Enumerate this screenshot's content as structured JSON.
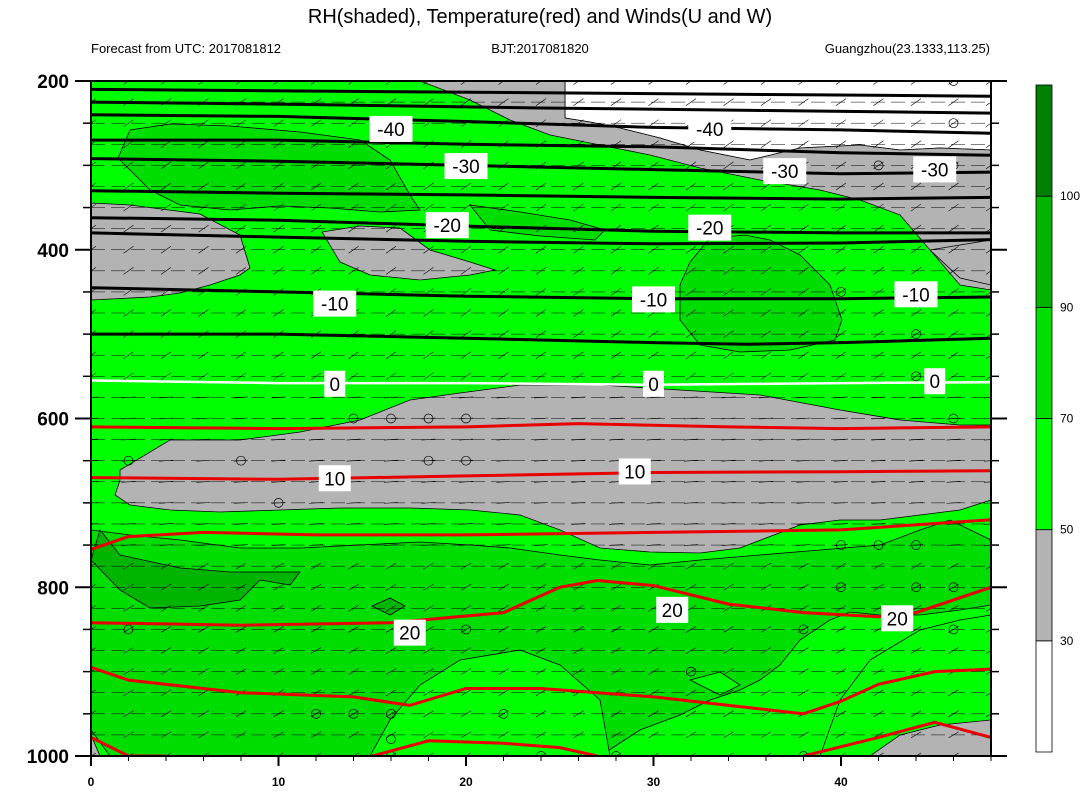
{
  "chart_data": {
    "type": "contour",
    "title": "RH(shaded), Temperature(red) and Winds(U and W)",
    "subtitle_left": "Forecast from UTC: 2017081812",
    "subtitle_center": "BJT:2017081820",
    "subtitle_right": "Guangzhou(23.1333,113.25)",
    "x_ticks": [
      "0",
      "10",
      "20",
      "30",
      "40"
    ],
    "x_range": [
      0,
      48
    ],
    "y_ticks": [
      "200",
      "400",
      "600",
      "800",
      "1000"
    ],
    "y_range": [
      200,
      1000
    ],
    "colorbar": {
      "labels": [
        "30",
        "50",
        "70",
        "90",
        "100"
      ],
      "colors": [
        "#ffffff",
        "#b3b3b3",
        "#00ff00",
        "#00dd00",
        "#00b400",
        "#007f00"
      ],
      "bounds": [
        30,
        50,
        70,
        90,
        100
      ]
    },
    "temperature_contours": [
      {
        "value": "-40",
        "level": 250
      },
      {
        "value": "-30",
        "level": 305
      },
      {
        "value": "-20",
        "level": 372
      },
      {
        "value": "-10",
        "level": 460
      },
      {
        "value": "0",
        "level": 555
      },
      {
        "value": "10",
        "level": 670
      },
      {
        "value": "20",
        "level": 850
      }
    ],
    "contour_labels": [
      {
        "text": "-40",
        "x": 16,
        "p": 258
      },
      {
        "text": "-40",
        "x": 33,
        "p": 258
      },
      {
        "text": "-30",
        "x": 20,
        "p": 302
      },
      {
        "text": "-30",
        "x": 37,
        "p": 308
      },
      {
        "text": "-30",
        "x": 45,
        "p": 306
      },
      {
        "text": "-20",
        "x": 19,
        "p": 372
      },
      {
        "text": "-20",
        "x": 33,
        "p": 375
      },
      {
        "text": "-10",
        "x": 13,
        "p": 465
      },
      {
        "text": "-10",
        "x": 30,
        "p": 460
      },
      {
        "text": "-10",
        "x": 44,
        "p": 454
      },
      {
        "text": "0",
        "x": 13,
        "p": 560
      },
      {
        "text": "0",
        "x": 30,
        "p": 560
      },
      {
        "text": "0",
        "x": 45,
        "p": 557
      },
      {
        "text": "10",
        "x": 13,
        "p": 672
      },
      {
        "text": "10",
        "x": 29,
        "p": 664
      },
      {
        "text": "20",
        "x": 17,
        "p": 855
      },
      {
        "text": "20",
        "x": 31,
        "p": 828
      },
      {
        "text": "20",
        "x": 43,
        "p": 838
      }
    ]
  }
}
